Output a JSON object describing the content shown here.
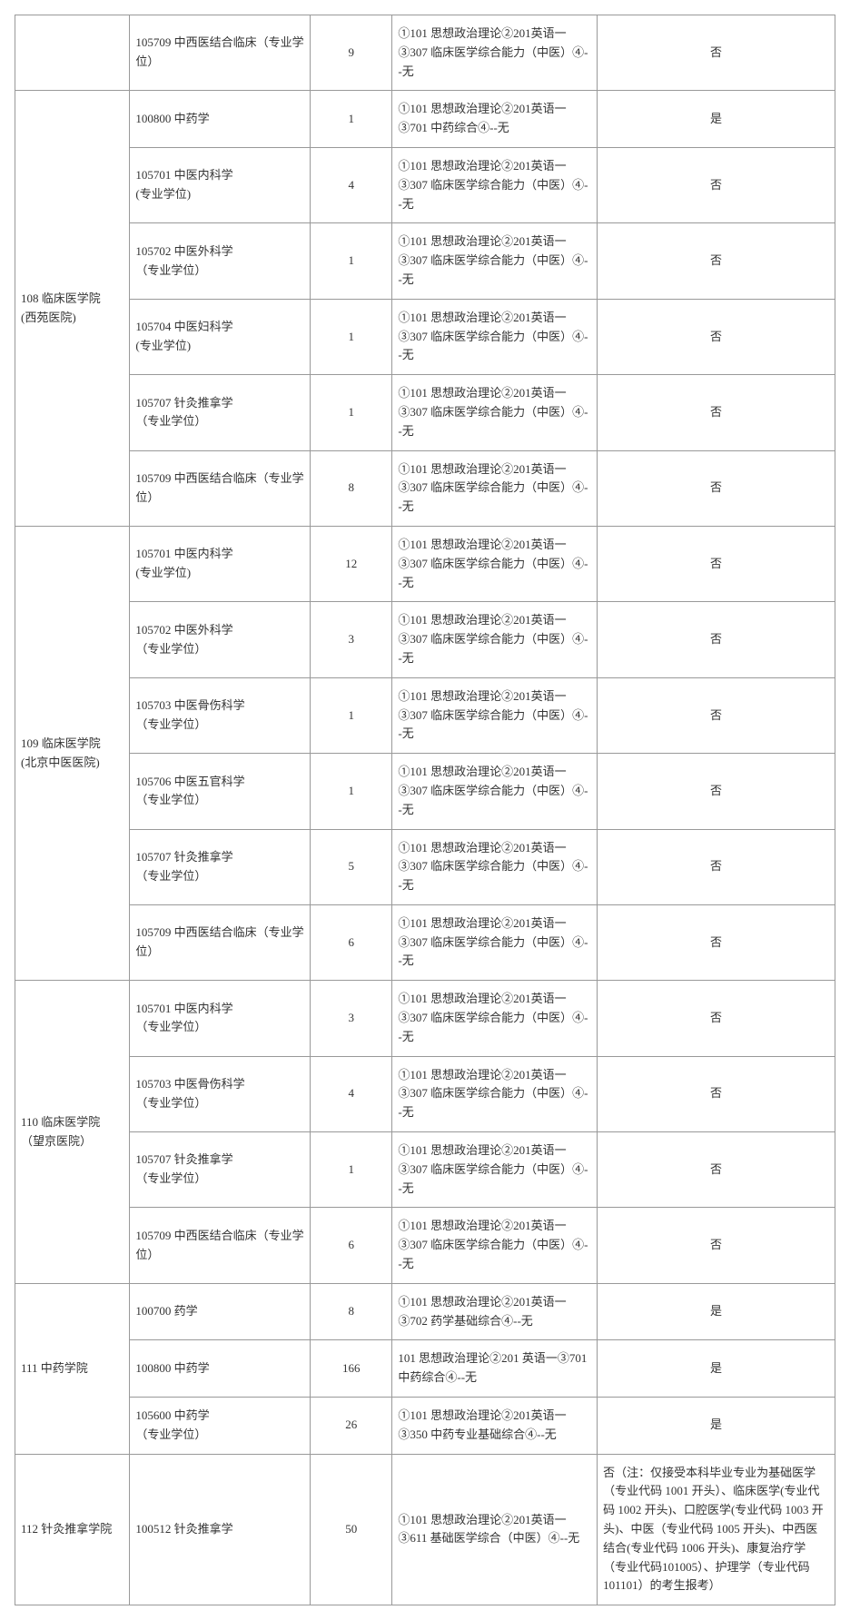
{
  "columns": {
    "dept_width": "14%",
    "major_width": "22%",
    "num_width": "10%",
    "exam_width": "25%",
    "note_width": "29%"
  },
  "font": {
    "family": "SimSun",
    "size": 13,
    "color": "#333333",
    "line_height": 1.6
  },
  "border_color": "#999999",
  "background_color": "#ffffff",
  "groups": [
    {
      "dept": "",
      "rows": [
        {
          "major": "105709 中西医结合临床（专业学位）",
          "num": "9",
          "exam": "①101 思想政治理论②201英语一③307 临床医学综合能力（中医）④--无",
          "note": "否"
        }
      ]
    },
    {
      "dept": "108 临床医学院\n(西苑医院)",
      "rows": [
        {
          "major": "100800 中药学",
          "num": "1",
          "exam": "①101 思想政治理论②201英语一③701 中药综合④--无",
          "note": "是"
        },
        {
          "major": "105701 中医内科学\n(专业学位)",
          "num": "4",
          "exam": "①101 思想政治理论②201英语一③307 临床医学综合能力（中医）④--无",
          "note": "否"
        },
        {
          "major": "105702 中医外科学\n（专业学位）",
          "num": "1",
          "exam": "①101 思想政治理论②201英语一③307 临床医学综合能力（中医）④--无",
          "note": "否"
        },
        {
          "major": "105704 中医妇科学\n(专业学位)",
          "num": "1",
          "exam": "①101 思想政治理论②201英语一③307 临床医学综合能力（中医）④--无",
          "note": "否"
        },
        {
          "major": "105707 针灸推拿学\n（专业学位）",
          "num": "1",
          "exam": "①101 思想政治理论②201英语一③307 临床医学综合能力（中医）④--无",
          "note": "否"
        },
        {
          "major": "105709 中西医结合临床（专业学位）",
          "num": "8",
          "exam": "①101 思想政治理论②201英语一③307 临床医学综合能力（中医）④--无",
          "note": "否"
        }
      ]
    },
    {
      "dept": "109 临床医学院\n(北京中医医院)",
      "rows": [
        {
          "major": "105701 中医内科学\n(专业学位)",
          "num": "12",
          "exam": "①101 思想政治理论②201英语一③307 临床医学综合能力（中医）④--无",
          "note": "否"
        },
        {
          "major": "105702  中医外科学\n（专业学位）",
          "num": "3",
          "exam": "①101 思想政治理论②201英语一③307 临床医学综合能力（中医）④--无",
          "note": "否"
        },
        {
          "major": "105703 中医骨伤科学\n（专业学位）",
          "num": "1",
          "exam": "①101 思想政治理论②201英语一③307 临床医学综合能力（中医）④--无",
          "note": "否"
        },
        {
          "major": "105706 中医五官科学\n（专业学位）",
          "num": "1",
          "exam": "①101 思想政治理论②201英语一③307 临床医学综合能力（中医）④--无",
          "note": "否"
        },
        {
          "major": "105707 针灸推拿学\n（专业学位）",
          "num": "5",
          "exam": "①101 思想政治理论②201英语一③307 临床医学综合能力（中医）④--无",
          "note": "否"
        },
        {
          "major": "105709 中西医结合临床（专业学位）",
          "num": "6",
          "exam": "①101 思想政治理论②201英语一③307 临床医学综合能力（中医）④--无",
          "note": "否"
        }
      ]
    },
    {
      "dept": "110 临床医学院\n（望京医院）",
      "rows": [
        {
          "major": "105701 中医内科学\n（专业学位）",
          "num": "3",
          "exam": "①101 思想政治理论②201英语一③307 临床医学综合能力（中医）④--无",
          "note": "否"
        },
        {
          "major": "105703 中医骨伤科学\n（专业学位）",
          "num": "4",
          "exam": "①101 思想政治理论②201英语一③307 临床医学综合能力（中医）④--无",
          "note": "否"
        },
        {
          "major": "105707 针灸推拿学\n（专业学位）",
          "num": "1",
          "exam": "①101 思想政治理论②201英语一③307 临床医学综合能力（中医）④--无",
          "note": "否"
        },
        {
          "major": "105709 中西医结合临床（专业学位）",
          "num": "6",
          "exam": "①101 思想政治理论②201英语一③307 临床医学综合能力（中医）④--无",
          "note": "否"
        }
      ]
    },
    {
      "dept": "111 中药学院",
      "rows": [
        {
          "major": "100700 药学",
          "num": "8",
          "exam": "①101 思想政治理论②201英语一③702 药学基础综合④--无",
          "note": "是"
        },
        {
          "major": "100800 中药学",
          "num": "166",
          "exam": "101 思想政治理论②201 英语一③701 中药综合④--无",
          "note": "是"
        },
        {
          "major": "105600 中药学\n（专业学位）",
          "num": "26",
          "exam": "①101 思想政治理论②201英语一③350 中药专业基础综合④--无",
          "note": "是"
        }
      ]
    },
    {
      "dept": "112 针灸推拿学院",
      "rows": [
        {
          "major": "100512 针灸推拿学",
          "num": "50",
          "exam": "①101 思想政治理论②201英语一③611 基础医学综合（中医）④--无",
          "note": "否（注：仅接受本科毕业专业为基础医学（专业代码 1001 开头）、临床医学(专业代码 1002 开头)、口腔医学(专业代码 1003 开头)、中医（专业代码 1005 开头)、中西医结合(专业代码 1006 开头)、康复治疗学（专业代码101005）、护理学（专业代码101101）的考生报考）",
          "note_long": true
        }
      ]
    }
  ]
}
